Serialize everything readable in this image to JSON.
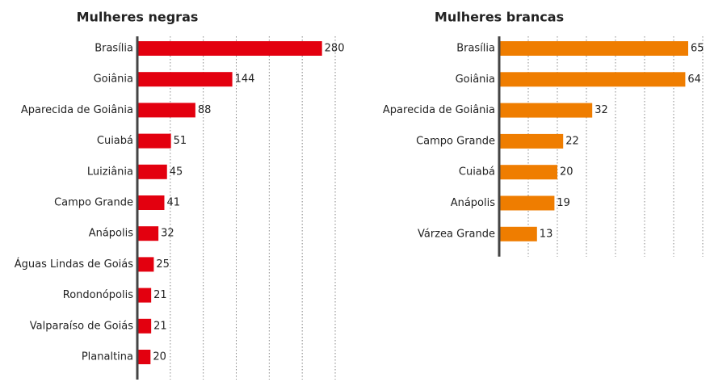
{
  "chart_data": [
    {
      "type": "bar",
      "orientation": "horizontal",
      "title": "Mulheres negras",
      "color": "#e3000f",
      "categories": [
        "Brasília",
        "Goiânia",
        "Aparecida de Goiânia",
        "Cuiabá",
        "Luiziânia",
        "Campo Grande",
        "Anápolis",
        "Águas Lindas de Goiás",
        "Rondonópolis",
        "Valparaíso de Goiás",
        "Planaltina"
      ],
      "values": [
        280,
        144,
        88,
        51,
        45,
        41,
        32,
        25,
        21,
        21,
        20
      ],
      "xlim": [
        0,
        300
      ],
      "xticks": [
        50,
        100,
        150,
        200,
        250,
        300
      ],
      "grid": true
    },
    {
      "type": "bar",
      "orientation": "horizontal",
      "title": "Mulheres brancas",
      "color": "#ef7d00",
      "categories": [
        "Brasília",
        "Goiânia",
        "Aparecida de Goiânia",
        "Campo Grande",
        "Cuiabá",
        "Anápolis",
        "Várzea Grande"
      ],
      "values": [
        65,
        64,
        32,
        22,
        20,
        19,
        13
      ],
      "xlim": [
        0,
        70
      ],
      "xticks": [
        10,
        20,
        30,
        40,
        50,
        60,
        70
      ],
      "grid": true
    }
  ]
}
